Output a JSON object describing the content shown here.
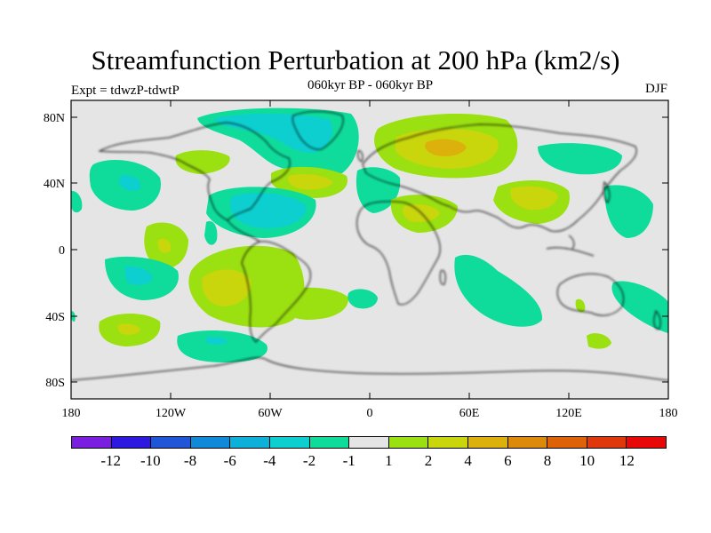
{
  "title": "Streamfunction Perturbation at 200 hPa (km2/s)",
  "left_label": "Expt = tdwzP-tdwtP",
  "center_label": "060kyr BP - 060kyr BP",
  "right_label": "DJF",
  "axes": {
    "lat_ticks": [
      "80N",
      "40N",
      "0",
      "40S",
      "80S"
    ],
    "lon_ticks": [
      "180",
      "120W",
      "60W",
      "0",
      "60E",
      "120E",
      "180"
    ]
  },
  "colorbar": {
    "colors": [
      "#7a1fe0",
      "#2e19e0",
      "#1f55d7",
      "#1089d8",
      "#0cb0d9",
      "#0dcfcf",
      "#0fdc9b",
      "#e5e5e5",
      "#9be010",
      "#c9d60c",
      "#dcb10b",
      "#dd8a0b",
      "#dd6208",
      "#e0380a",
      "#e80808"
    ],
    "labels": [
      "-12",
      "-10",
      "-8",
      "-6",
      "-4",
      "-2",
      "-1",
      "1",
      "2",
      "4",
      "6",
      "8",
      "10",
      "12"
    ]
  },
  "map": {
    "projection": "cylindrical equidistant",
    "background": "#e5e5e5",
    "land_outline": "coastlines"
  }
}
